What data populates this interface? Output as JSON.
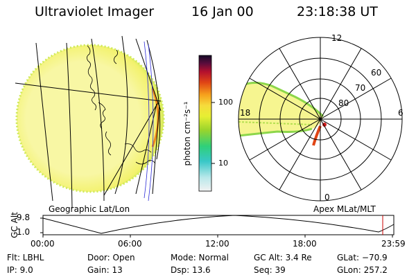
{
  "header": {
    "instrument": "Ultraviolet Imager",
    "date": "16 Jan 00",
    "time": "23:18:38 UT"
  },
  "colorbar": {
    "unit_label": "photon cm⁻²s⁻¹",
    "tick_labels": [
      "100",
      "10"
    ]
  },
  "left_panel": {
    "caption": "Geographic Lat/Lon"
  },
  "polar_plot": {
    "caption": "Apex MLat/MLT",
    "mlt_labels": {
      "top": "12",
      "left": "18",
      "right": "6",
      "bottom": "0"
    },
    "lat_labels": [
      "60",
      "70",
      "80"
    ]
  },
  "altitude_plot": {
    "axis_label": "GC Alt",
    "y_ticks": [
      "9.8",
      "1.0"
    ],
    "x_ticks": [
      "00:00",
      "06:00",
      "12:00",
      "18:00",
      "23:59"
    ]
  },
  "info": {
    "flt": "Flt: LBHL",
    "ip": "IP:  9.0",
    "door": "Door: Open",
    "gain": "Gain: 13",
    "mode": "Mode: Normal",
    "dsp": "Dsp:    13.6",
    "gc_alt": "GC Alt: 3.4 Re",
    "seq": "Seq: 39",
    "glat": "GLat: −70.9",
    "glon": "GLon: 257.2"
  },
  "colors": {
    "background": "#ffffff",
    "aurora_yellow": "#f6f590",
    "aurora_edge_green": "#8cd64a",
    "aurora_hot_red": "#d11b1b",
    "marker_red": "#cc0000"
  }
}
